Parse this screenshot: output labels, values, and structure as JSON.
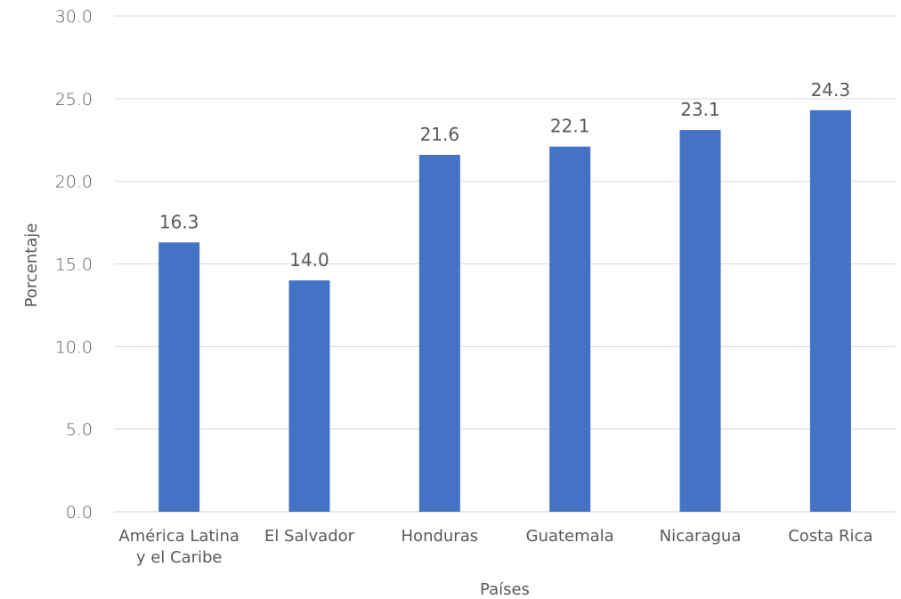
{
  "chart_data": {
    "type": "bar",
    "title": "",
    "xlabel": "Países",
    "ylabel": "Porcentaje",
    "categories": [
      [
        "América Latina",
        "y el Caribe"
      ],
      [
        "El Salvador"
      ],
      [
        "Honduras"
      ],
      [
        "Guatemala"
      ],
      [
        "Nicaragua"
      ],
      [
        "Costa Rica"
      ]
    ],
    "values": [
      16.3,
      14.0,
      21.6,
      22.1,
      23.1,
      24.3
    ],
    "value_labels": [
      "16.3",
      "14.0",
      "21.6",
      "22.1",
      "23.1",
      "24.3"
    ],
    "ylim": [
      0,
      30
    ],
    "yticks": [
      0,
      5,
      10,
      15,
      20,
      25,
      30
    ],
    "ytick_labels": [
      "0.0",
      "5.0",
      "10.0",
      "15.0",
      "20.0",
      "25.0",
      "30.0"
    ],
    "grid": true,
    "legend": "none",
    "bar_color": "#4472c4"
  }
}
